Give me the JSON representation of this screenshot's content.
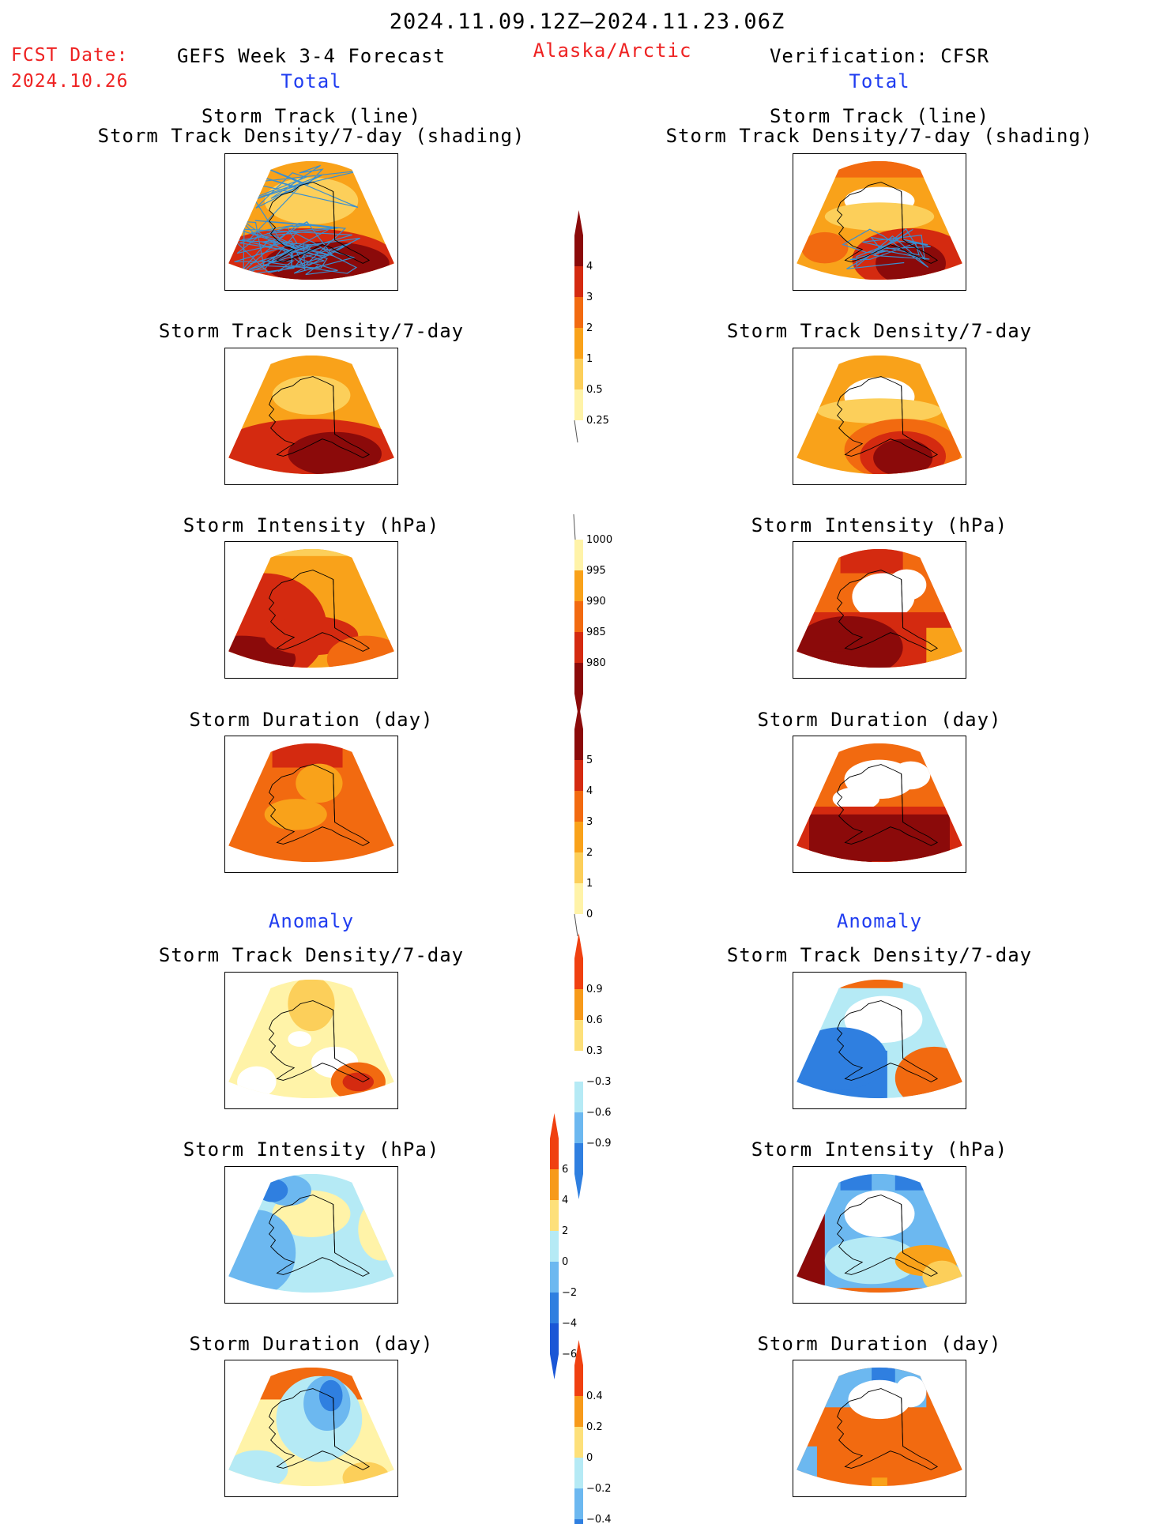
{
  "header": {
    "date_range": "2024.11.09.12Z–2024.11.23.06Z",
    "fcst_date_label": "FCST Date:",
    "fcst_date_value": "2024.10.26",
    "forecast_title": "GEFS Week 3-4 Forecast",
    "region": "Alaska/Arctic",
    "verification_title": "Verification: CFSR"
  },
  "sections": {
    "total_left": "Total",
    "total_right": "Total",
    "anomaly_left": "Anomaly",
    "anomaly_right": "Anomaly"
  },
  "panel_titles": {
    "track_line": "Storm Track (line)",
    "track_density_shading": "Storm Track Density/7-day (shading)",
    "track_density": "Storm Track Density/7-day",
    "intensity": "Storm Intensity (hPa)",
    "duration": "Storm Duration (day)"
  },
  "colorbars": {
    "density": {
      "ticks": [
        "4",
        "3",
        "2",
        "1",
        "0.5",
        "0.25"
      ],
      "colors": [
        "#8b0a0a",
        "#d42a10",
        "#f26a10",
        "#f9a21a",
        "#fccf5a",
        "#fff3a8"
      ]
    },
    "intensity": {
      "ticks": [
        "1000",
        "995",
        "990",
        "985",
        "980"
      ],
      "colors": [
        "#fff3a8",
        "#f9a21a",
        "#f26a10",
        "#d42a10",
        "#8b0a0a"
      ]
    },
    "duration": {
      "ticks": [
        "5",
        "4",
        "3",
        "2",
        "1",
        "0"
      ],
      "colors": [
        "#8b0a0a",
        "#d42a10",
        "#f26a10",
        "#f9a21a",
        "#fccf5a",
        "#fff3a8"
      ]
    },
    "density_anom": {
      "ticks": [
        "0.9",
        "0.6",
        "0.3",
        "−0.3",
        "−0.6",
        "−0.9"
      ],
      "colors": [
        "#f04010",
        "#f79a1a",
        "#fde07a",
        "#ffffff",
        "#b5eaf5",
        "#6cb8f0",
        "#2f7fe0"
      ]
    },
    "intensity_anom": {
      "ticks": [
        "6",
        "4",
        "2",
        "0",
        "−2",
        "−4",
        "−6"
      ],
      "colors": [
        "#f04010",
        "#f79a1a",
        "#fde07a",
        "#b5eaf5",
        "#6cb8f0",
        "#2f7fe0",
        "#1a56d6"
      ]
    },
    "duration_anom": {
      "ticks": [
        "0.4",
        "0.2",
        "0",
        "−0.2",
        "−0.4"
      ],
      "colors": [
        "#f04010",
        "#f79a1a",
        "#fde07a",
        "#b5eaf5",
        "#6cb8f0",
        "#2f7fe0"
      ]
    }
  },
  "map_colors": {
    "dark_red": "#8b0a0a",
    "red": "#d42a10",
    "orange_red": "#f26a10",
    "orange": "#f9a21a",
    "light_orange": "#fccf5a",
    "yellow": "#fff3a8",
    "white": "#ffffff",
    "pale_blue": "#b5eaf5",
    "light_blue": "#6cb8f0",
    "blue": "#2f7fe0",
    "dark_blue": "#1a56d6",
    "track_line": "#3a8fd0"
  }
}
